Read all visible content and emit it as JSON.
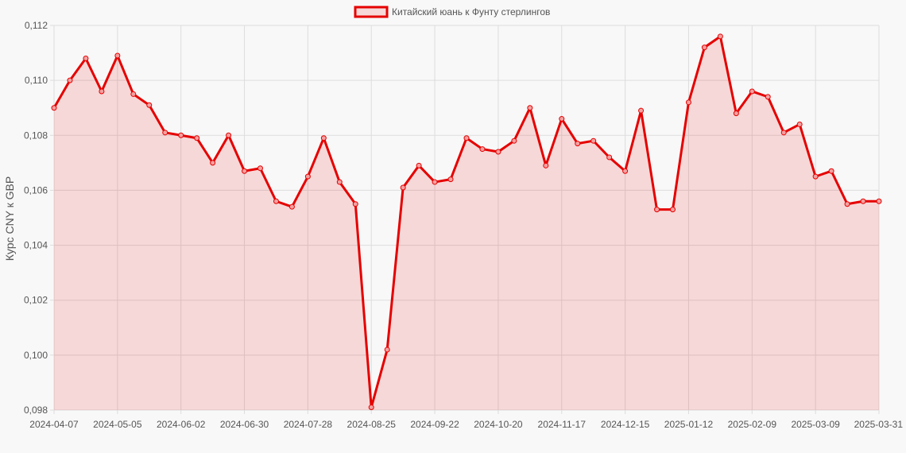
{
  "chart_data": {
    "type": "area",
    "legend": {
      "position": "top-center",
      "label": "Китайский юань к Фунту стерлингов"
    },
    "ylabel": "Курс CNY к GBP",
    "xlabel": "",
    "ylim": [
      0.098,
      0.112
    ],
    "y_ticks": [
      "0,112",
      "0,110",
      "0,108",
      "0,106",
      "0,104",
      "0,102",
      "0,100",
      "0,098"
    ],
    "y_tick_values": [
      0.112,
      0.11,
      0.108,
      0.106,
      0.104,
      0.102,
      0.1,
      0.098
    ],
    "x_tick_labels": [
      "2024-04-07",
      "2024-05-05",
      "2024-06-02",
      "2024-06-30",
      "2024-07-28",
      "2024-08-25",
      "2024-09-22",
      "2024-10-20",
      "2024-11-17",
      "2024-12-15",
      "2025-01-12",
      "2025-02-09",
      "2025-03-09",
      "2025-03-31"
    ],
    "grid": true,
    "colors": {
      "line": "#e60000",
      "fill": "rgba(230,0,0,0.13)",
      "point_fill": "#f4a0a0",
      "grid": "#dddddd",
      "background": "#f8f8f8"
    },
    "series": [
      {
        "name": "Китайский юань к Фунту стерлингов",
        "values": [
          0.109,
          0.11,
          0.1108,
          0.1096,
          0.1109,
          0.1095,
          0.1091,
          0.1081,
          0.108,
          0.1079,
          0.107,
          0.108,
          0.1067,
          0.1068,
          0.1056,
          0.1054,
          0.1065,
          0.1079,
          0.1063,
          0.1055,
          0.0981,
          0.1002,
          0.1061,
          0.1069,
          0.1063,
          0.1064,
          0.1079,
          0.1075,
          0.1074,
          0.1078,
          0.109,
          0.1069,
          0.1086,
          0.1077,
          0.1078,
          0.1072,
          0.1067,
          0.1089,
          0.1053,
          0.1053,
          0.1092,
          0.1112,
          0.1116,
          0.1088,
          0.1096,
          0.1094,
          0.1081,
          0.1084,
          0.1065,
          0.1067,
          0.1055,
          0.1056,
          0.1056
        ]
      }
    ]
  }
}
